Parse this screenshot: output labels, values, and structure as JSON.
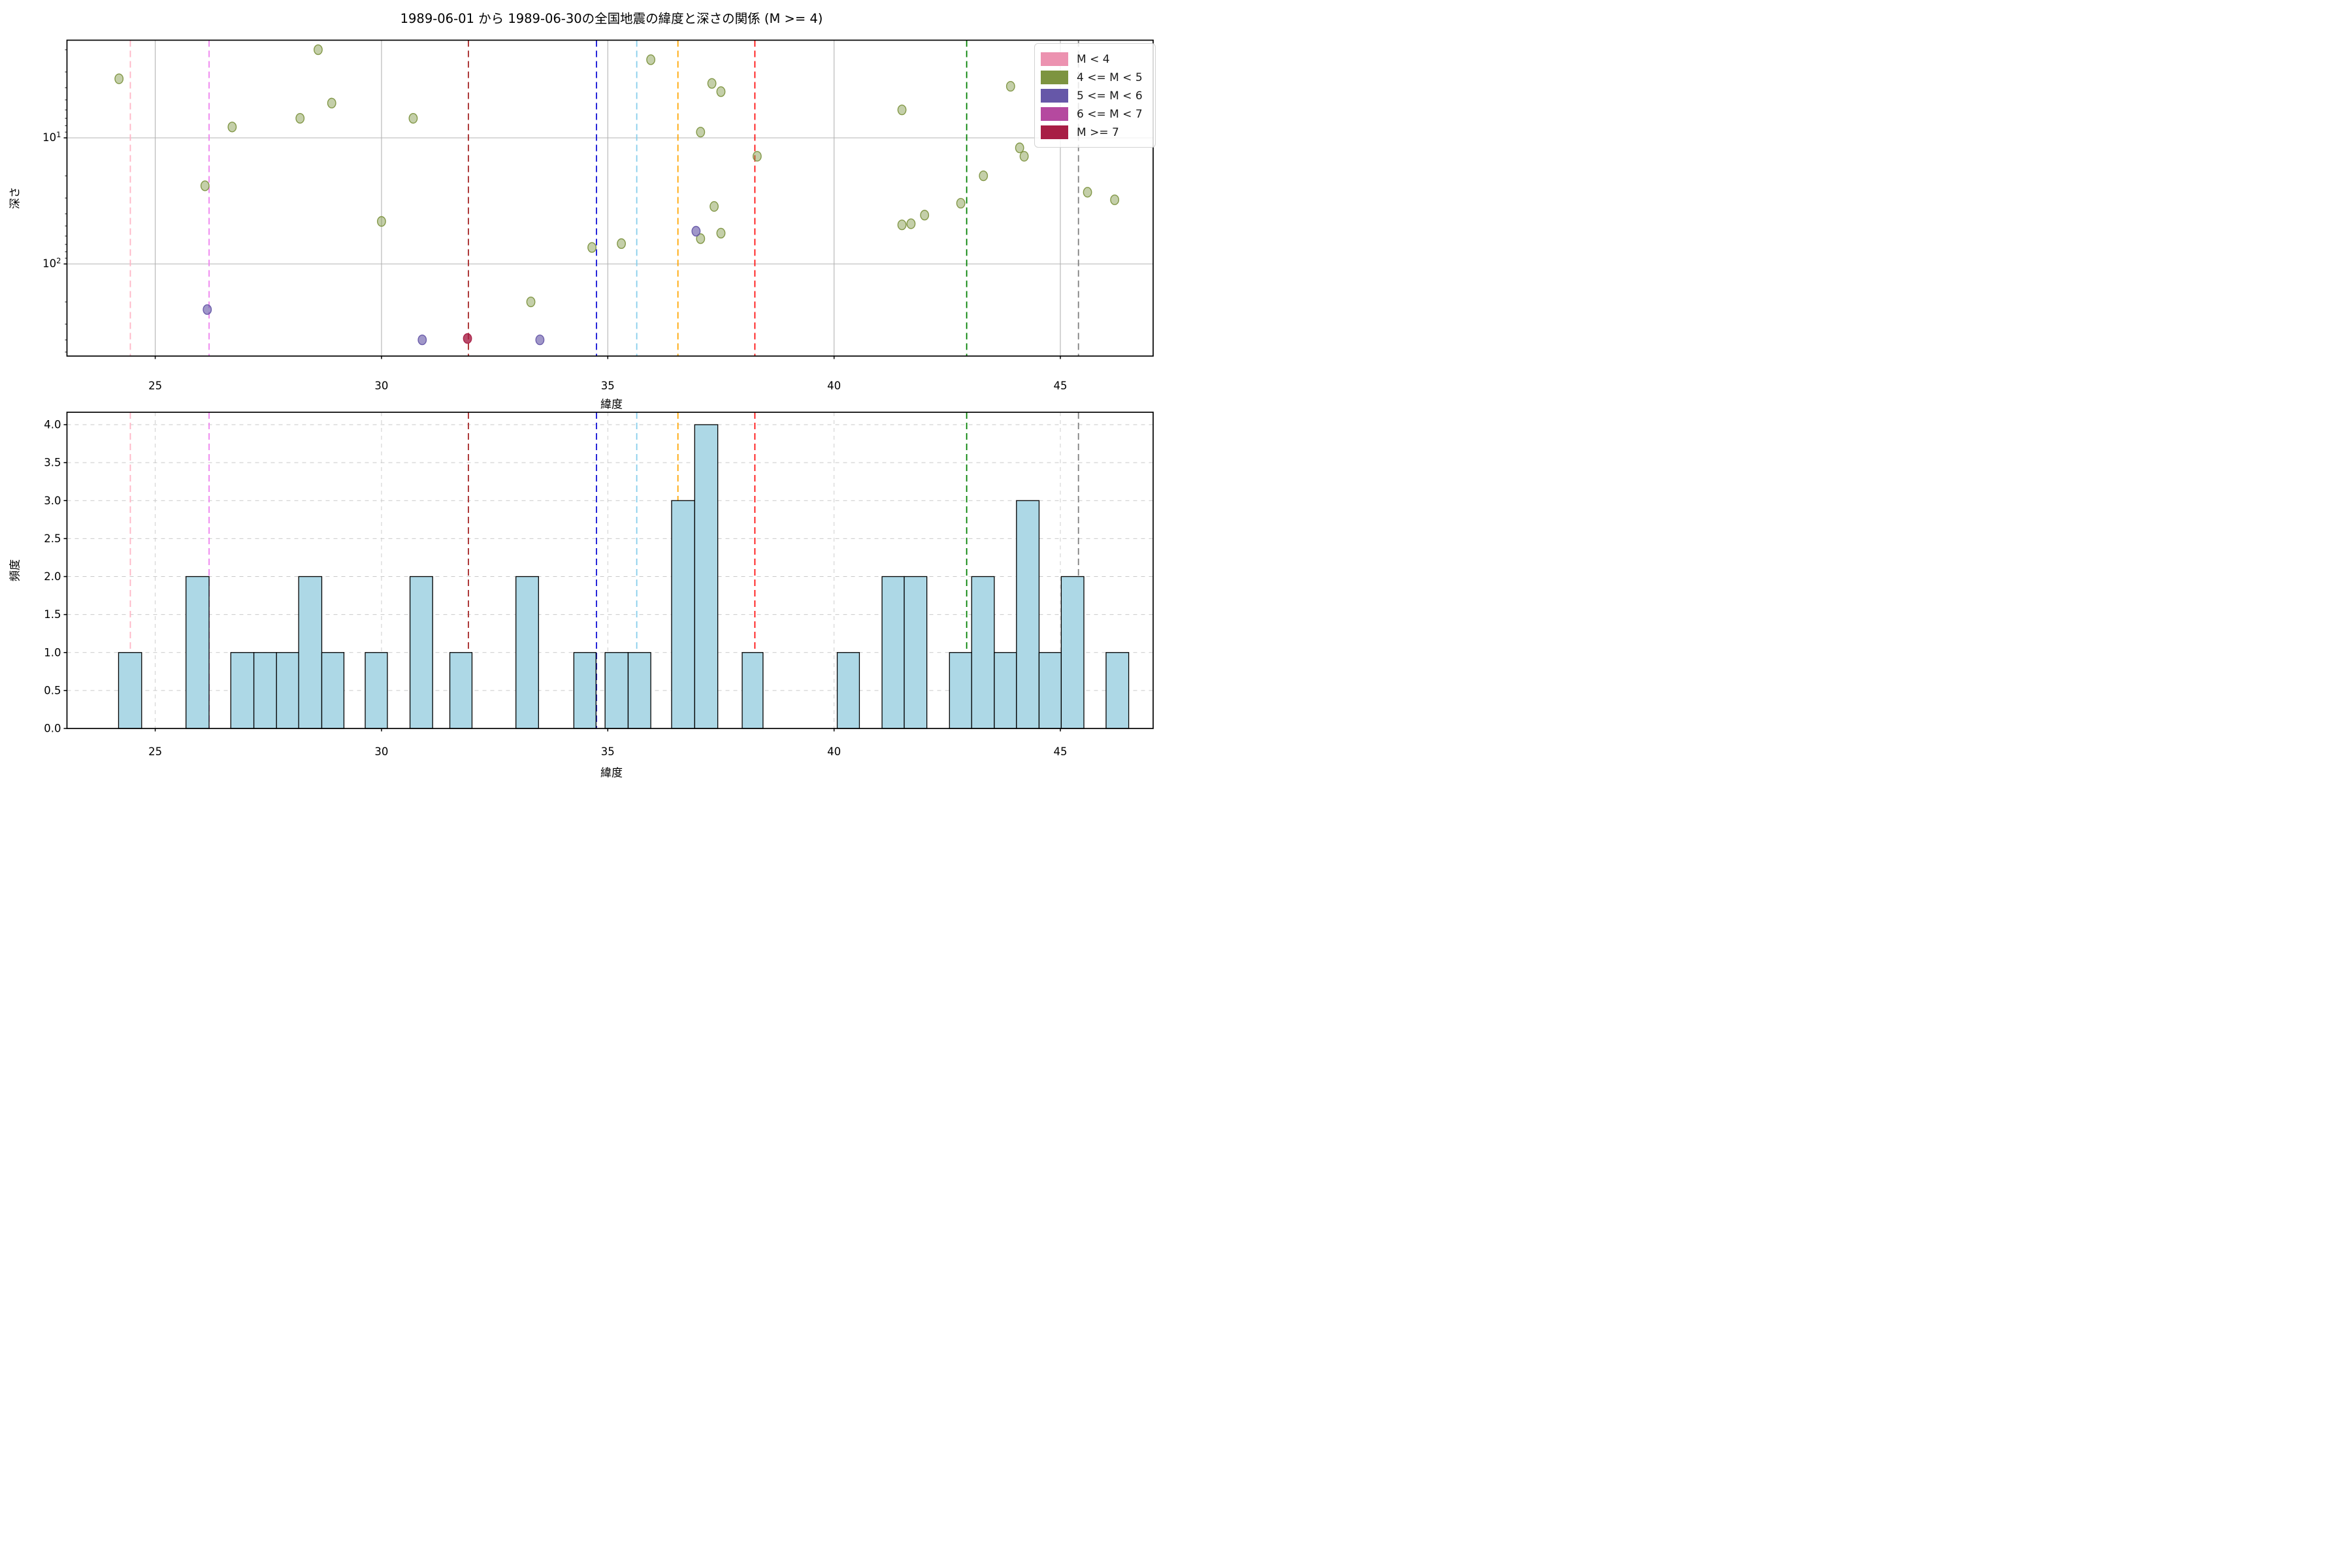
{
  "chart_data": [
    {
      "type": "scatter",
      "title": "1989-06-01 から 1989-06-30の全国地震の緯度と深さの関係 (M >= 4)",
      "xlabel": "緯度",
      "ylabel": "深さ",
      "xlim": [
        23.05,
        47.05
      ],
      "ylim_depth": [
        1.7,
        540
      ],
      "y_scale": "log-inverted",
      "xticks": [
        25,
        30,
        35,
        40,
        45
      ],
      "yticks_log": [
        10,
        100
      ],
      "grid": "solid gray, major only",
      "legend_position": "upper right",
      "series": [
        {
          "name": "M < 4",
          "color": "#ec92b0",
          "points": []
        },
        {
          "name": "4 <= M < 5",
          "color": "#7d9440",
          "points": [
            [
              24.2,
              3.4
            ],
            [
              26.1,
              24
            ],
            [
              26.7,
              8.2
            ],
            [
              28.2,
              7.0
            ],
            [
              28.6,
              2.0
            ],
            [
              28.9,
              5.3
            ],
            [
              30.0,
              46
            ],
            [
              30.7,
              7.0
            ],
            [
              33.3,
              200
            ],
            [
              34.65,
              74
            ],
            [
              35.3,
              69
            ],
            [
              35.95,
              2.4
            ],
            [
              37.05,
              9.0
            ],
            [
              37.3,
              3.7
            ],
            [
              37.5,
              4.3
            ],
            [
              37.35,
              35
            ],
            [
              37.5,
              57
            ],
            [
              37.05,
              63
            ],
            [
              38.3,
              14
            ],
            [
              41.5,
              6.0
            ],
            [
              41.5,
              49
            ],
            [
              41.7,
              48
            ],
            [
              42.0,
              41
            ],
            [
              42.8,
              33
            ],
            [
              43.3,
              20
            ],
            [
              43.9,
              3.9
            ],
            [
              44.1,
              12
            ],
            [
              44.2,
              14
            ],
            [
              45.6,
              27
            ],
            [
              46.2,
              31
            ]
          ]
        },
        {
          "name": "5 <= M < 6",
          "color": "#6657a8",
          "points": [
            [
              26.15,
              230
            ],
            [
              30.9,
              400
            ],
            [
              33.5,
              400
            ],
            [
              36.95,
              55
            ]
          ]
        },
        {
          "name": "6 <= M < 7",
          "color": "#b5499f",
          "points": []
        },
        {
          "name": "M >= 7",
          "color": "#a81e45",
          "points": [
            [
              31.9,
              390
            ]
          ]
        }
      ],
      "vlines": [
        {
          "x": 24.45,
          "color": "#ffb5c5"
        },
        {
          "x": 26.19,
          "color": "#ee82ee"
        },
        {
          "x": 31.92,
          "color": "#a52525"
        },
        {
          "x": 34.75,
          "color": "#1111d6"
        },
        {
          "x": 35.64,
          "color": "#87ceeb"
        },
        {
          "x": 36.55,
          "color": "#ffa500"
        },
        {
          "x": 38.25,
          "color": "#ff1111"
        },
        {
          "x": 42.93,
          "color": "#008000"
        },
        {
          "x": 45.4,
          "color": "#808080"
        }
      ]
    },
    {
      "type": "bar",
      "xlabel": "緯度",
      "ylabel": "頻度",
      "xlim": [
        23.05,
        47.05
      ],
      "ylim": [
        0,
        4.16
      ],
      "xticks": [
        25,
        30,
        35,
        40,
        45
      ],
      "yticks": [
        0,
        0.5,
        1,
        1.5,
        2,
        2.5,
        3,
        3.5,
        4
      ],
      "grid": "dashed light gray",
      "bar_color": "#add8e6",
      "bar_edge_color": "#000000",
      "bars": [
        {
          "x0": 24.19,
          "x1": 24.7,
          "h": 1
        },
        {
          "x0": 25.68,
          "x1": 26.19,
          "h": 2
        },
        {
          "x0": 26.67,
          "x1": 27.18,
          "h": 1
        },
        {
          "x0": 27.18,
          "x1": 27.68,
          "h": 1
        },
        {
          "x0": 27.68,
          "x1": 28.17,
          "h": 1
        },
        {
          "x0": 28.17,
          "x1": 28.68,
          "h": 2
        },
        {
          "x0": 28.68,
          "x1": 29.17,
          "h": 1
        },
        {
          "x0": 29.64,
          "x1": 30.13,
          "h": 1
        },
        {
          "x0": 30.63,
          "x1": 31.13,
          "h": 2
        },
        {
          "x0": 31.51,
          "x1": 32.0,
          "h": 1
        },
        {
          "x0": 32.97,
          "x1": 33.47,
          "h": 2
        },
        {
          "x0": 34.25,
          "x1": 34.74,
          "h": 1
        },
        {
          "x0": 34.94,
          "x1": 35.45,
          "h": 1
        },
        {
          "x0": 35.45,
          "x1": 35.95,
          "h": 1
        },
        {
          "x0": 36.41,
          "x1": 36.92,
          "h": 3
        },
        {
          "x0": 36.92,
          "x1": 37.43,
          "h": 4
        },
        {
          "x0": 37.97,
          "x1": 38.43,
          "h": 1
        },
        {
          "x0": 40.07,
          "x1": 40.56,
          "h": 1
        },
        {
          "x0": 41.06,
          "x1": 41.55,
          "h": 2
        },
        {
          "x0": 41.55,
          "x1": 42.05,
          "h": 2
        },
        {
          "x0": 42.55,
          "x1": 43.04,
          "h": 1
        },
        {
          "x0": 43.04,
          "x1": 43.54,
          "h": 2
        },
        {
          "x0": 43.54,
          "x1": 44.03,
          "h": 1
        },
        {
          "x0": 44.03,
          "x1": 44.53,
          "h": 3
        },
        {
          "x0": 44.53,
          "x1": 45.02,
          "h": 1
        },
        {
          "x0": 45.02,
          "x1": 45.52,
          "h": 2
        },
        {
          "x0": 46.01,
          "x1": 46.51,
          "h": 1
        }
      ],
      "vlines_same_as_scatter": true
    }
  ]
}
